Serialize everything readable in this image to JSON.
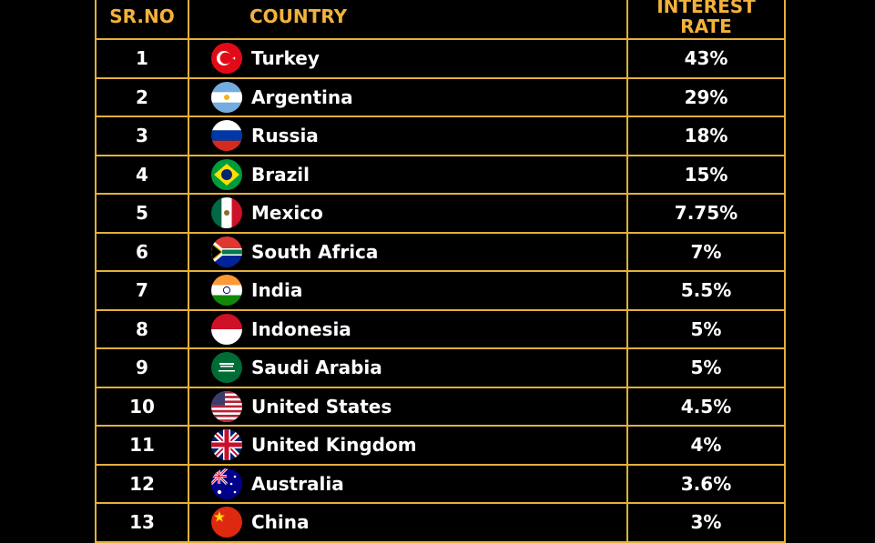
{
  "table": {
    "headers": {
      "sr": "SR.NO",
      "country": "COUNTRY",
      "rate": "INTEREST RATE"
    },
    "rows": [
      {
        "sr": "1",
        "country": "Turkey",
        "rate": "43%",
        "flag": "turkey-flag-icon"
      },
      {
        "sr": "2",
        "country": "Argentina",
        "rate": "29%",
        "flag": "argentina-flag-icon"
      },
      {
        "sr": "3",
        "country": "Russia",
        "rate": "18%",
        "flag": "russia-flag-icon"
      },
      {
        "sr": "4",
        "country": "Brazil",
        "rate": "15%",
        "flag": "brazil-flag-icon"
      },
      {
        "sr": "5",
        "country": "Mexico",
        "rate": "7.75%",
        "flag": "mexico-flag-icon"
      },
      {
        "sr": "6",
        "country": "South Africa",
        "rate": "7%",
        "flag": "south-africa-flag-icon"
      },
      {
        "sr": "7",
        "country": "India",
        "rate": "5.5%",
        "flag": "india-flag-icon"
      },
      {
        "sr": "8",
        "country": "Indonesia",
        "rate": "5%",
        "flag": "indonesia-flag-icon"
      },
      {
        "sr": "9",
        "country": "Saudi Arabia",
        "rate": "5%",
        "flag": "saudi-arabia-flag-icon"
      },
      {
        "sr": "10",
        "country": "United States",
        "rate": "4.5%",
        "flag": "united-states-flag-icon"
      },
      {
        "sr": "11",
        "country": "United Kingdom",
        "rate": "4%",
        "flag": "united-kingdom-flag-icon"
      },
      {
        "sr": "12",
        "country": "Australia",
        "rate": "3.6%",
        "flag": "australia-flag-icon"
      },
      {
        "sr": "13",
        "country": "China",
        "rate": "3%",
        "flag": "china-flag-icon"
      }
    ]
  },
  "colors": {
    "background": "#000000",
    "border": "#e2b13a",
    "header_text": "#f3b23b",
    "cell_text": "#ffffff"
  }
}
